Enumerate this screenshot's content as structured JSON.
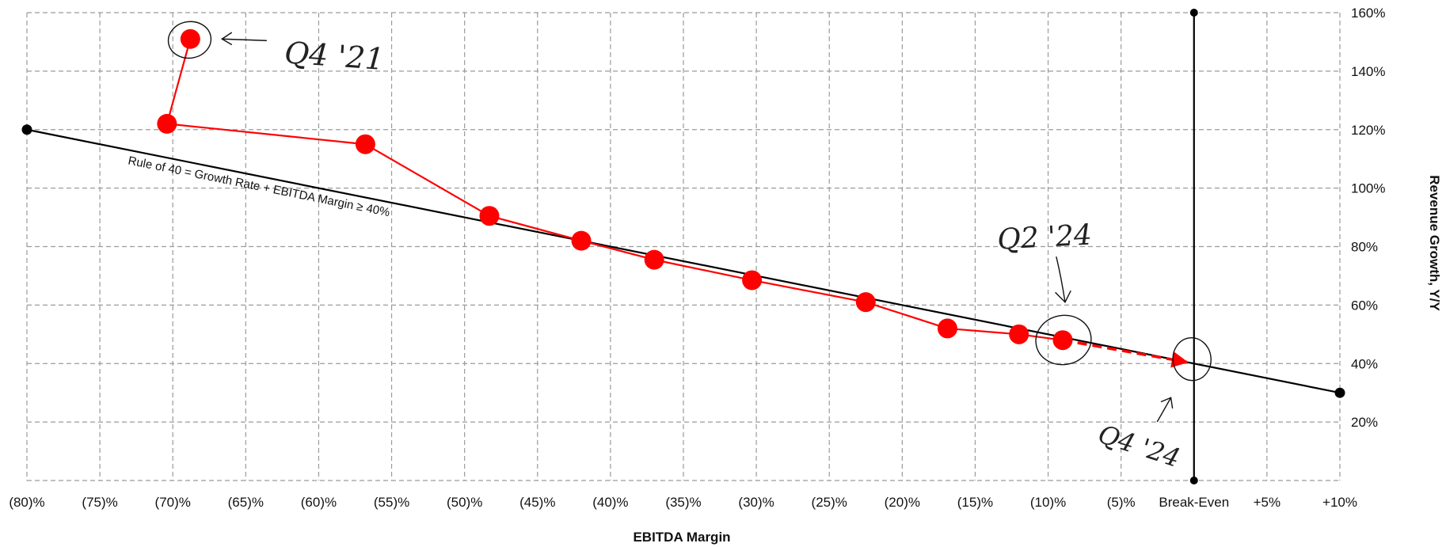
{
  "chart_data": {
    "type": "line",
    "xlabel": "EBITDA Margin",
    "ylabel": "Revenue Growth, Y/Y",
    "xlim": [
      -80,
      10
    ],
    "ylim": [
      0,
      160
    ],
    "grid": true,
    "x_ticks": [
      {
        "value": -80,
        "label": "(80)%"
      },
      {
        "value": -75,
        "label": "(75)%"
      },
      {
        "value": -70,
        "label": "(70)%"
      },
      {
        "value": -65,
        "label": "(65)%"
      },
      {
        "value": -60,
        "label": "(60)%"
      },
      {
        "value": -55,
        "label": "(55)%"
      },
      {
        "value": -50,
        "label": "(50)%"
      },
      {
        "value": -45,
        "label": "(45)%"
      },
      {
        "value": -40,
        "label": "(40)%"
      },
      {
        "value": -35,
        "label": "(35)%"
      },
      {
        "value": -30,
        "label": "(30)%"
      },
      {
        "value": -25,
        "label": "(25)%"
      },
      {
        "value": -20,
        "label": "(20)%"
      },
      {
        "value": -15,
        "label": "(15)%"
      },
      {
        "value": -10,
        "label": "(10)%"
      },
      {
        "value": -5,
        "label": "(5)%"
      },
      {
        "value": 0,
        "label": "Break-Even"
      },
      {
        "value": 5,
        "label": "+5%"
      },
      {
        "value": 10,
        "label": "+10%"
      }
    ],
    "y_ticks": [
      {
        "value": 20,
        "label": "20%"
      },
      {
        "value": 40,
        "label": "40%"
      },
      {
        "value": 60,
        "label": "60%"
      },
      {
        "value": 80,
        "label": "80%"
      },
      {
        "value": 100,
        "label": "100%"
      },
      {
        "value": 120,
        "label": "120%"
      },
      {
        "value": 140,
        "label": "140%"
      },
      {
        "value": 160,
        "label": "160%"
      }
    ],
    "rule_of_40": {
      "label": "Rule of 40 = Growth Rate + EBITDA Margin ≥ 40%",
      "points": [
        {
          "x": -80,
          "y": 120
        },
        {
          "x": 10,
          "y": 30
        }
      ]
    },
    "break_even_line": {
      "x": 0,
      "y_range": [
        0,
        160
      ]
    },
    "series": [
      {
        "color": "#ff0000",
        "points": [
          {
            "x": -68.8,
            "y": 151
          },
          {
            "x": -70.4,
            "y": 122
          },
          {
            "x": -56.8,
            "y": 115
          },
          {
            "x": -48.3,
            "y": 90.5
          },
          {
            "x": -42,
            "y": 82
          },
          {
            "x": -37,
            "y": 75.5
          },
          {
            "x": -30.3,
            "y": 68.5
          },
          {
            "x": -22.5,
            "y": 61
          },
          {
            "x": -16.9,
            "y": 52
          },
          {
            "x": -12,
            "y": 50
          },
          {
            "x": -9,
            "y": 48
          }
        ],
        "projection": {
          "from": {
            "x": -9,
            "y": 48
          },
          "to": {
            "x": -0.5,
            "y": 40.5
          },
          "style": "dashed-arrow"
        }
      }
    ],
    "annotations": [
      {
        "text": "Q4 '21",
        "x": -68.8,
        "y": 151
      },
      {
        "text": "Q2 '24",
        "x": -9,
        "y": 48
      },
      {
        "text": "Q4 '24",
        "x": -0.5,
        "y": 40.5
      }
    ]
  }
}
